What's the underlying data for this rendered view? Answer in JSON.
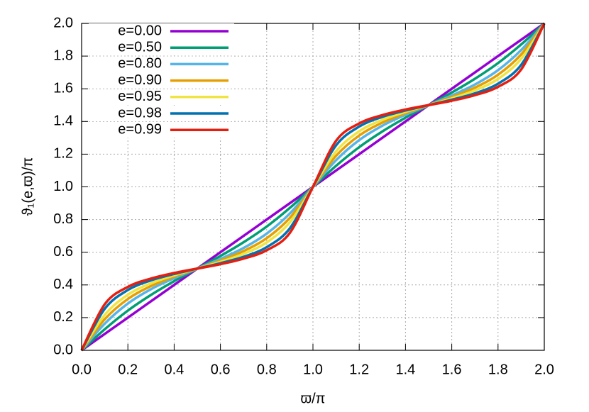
{
  "chart_data": {
    "type": "line",
    "x_label": "ϖ/π",
    "y_label": "ϑ₁(e,ϖ)/π",
    "x": [
      0,
      0.1,
      0.2,
      0.3,
      0.4,
      0.5,
      0.6,
      0.7,
      0.8,
      0.9,
      1.0,
      1.1,
      1.2,
      1.3,
      1.4,
      1.5,
      1.6,
      1.7,
      1.8,
      1.9,
      2.0
    ],
    "series": [
      {
        "name": "e=0.00",
        "color": "#9400d3",
        "values": [
          0,
          0.1,
          0.2,
          0.3,
          0.4,
          0.5,
          0.6,
          0.7,
          0.8,
          0.9,
          1.0,
          1.1,
          1.2,
          1.3,
          1.4,
          1.5,
          1.6,
          1.7,
          1.8,
          1.9,
          2.0
        ]
      },
      {
        "name": "e=0.50",
        "color": "#009e73",
        "values": [
          0,
          0.129,
          0.243,
          0.339,
          0.423,
          0.5,
          0.577,
          0.661,
          0.757,
          0.871,
          1.0,
          1.129,
          1.243,
          1.339,
          1.423,
          1.5,
          1.577,
          1.661,
          1.757,
          1.871,
          2.0
        ]
      },
      {
        "name": "e=0.80",
        "color": "#56b4e9",
        "values": [
          0,
          0.163,
          0.286,
          0.374,
          0.441,
          0.5,
          0.559,
          0.626,
          0.714,
          0.837,
          1.0,
          1.163,
          1.286,
          1.374,
          1.441,
          1.5,
          1.559,
          1.626,
          1.714,
          1.837,
          2.0
        ]
      },
      {
        "name": "e=0.90",
        "color": "#e69f00",
        "values": [
          0,
          0.19,
          0.314,
          0.393,
          0.451,
          0.5,
          0.549,
          0.607,
          0.686,
          0.81,
          1.0,
          1.19,
          1.314,
          1.393,
          1.451,
          1.5,
          1.549,
          1.607,
          1.686,
          1.81,
          2.0
        ]
      },
      {
        "name": "e=0.95",
        "color": "#f0e442",
        "values": [
          0,
          0.217,
          0.34,
          0.41,
          0.459,
          0.5,
          0.541,
          0.59,
          0.66,
          0.783,
          1.0,
          1.217,
          1.34,
          1.41,
          1.459,
          1.5,
          1.541,
          1.59,
          1.66,
          1.783,
          2.0
        ]
      },
      {
        "name": "e=0.98",
        "color": "#0072b2",
        "values": [
          0,
          0.254,
          0.369,
          0.428,
          0.467,
          0.5,
          0.533,
          0.572,
          0.631,
          0.746,
          1.0,
          1.254,
          1.369,
          1.428,
          1.467,
          1.5,
          1.533,
          1.572,
          1.631,
          1.746,
          2.0
        ]
      },
      {
        "name": "e=0.99",
        "color": "#e51e10",
        "values": [
          0,
          0.282,
          0.388,
          0.439,
          0.473,
          0.5,
          0.527,
          0.561,
          0.612,
          0.718,
          1.0,
          1.282,
          1.388,
          1.439,
          1.473,
          1.5,
          1.527,
          1.561,
          1.612,
          1.718,
          2.0
        ]
      }
    ],
    "xlim": [
      0,
      2
    ],
    "ylim": [
      0,
      2
    ],
    "xticks": [
      {
        "value": 0,
        "label": "0.0"
      },
      0.2,
      0.4,
      0.6,
      0.8,
      {
        "value": 1,
        "label": "1.0"
      },
      1.2,
      1.4,
      1.6,
      1.8,
      {
        "value": 2,
        "label": "2.0"
      }
    ],
    "yticks": [
      {
        "value": 0,
        "label": "0.0"
      },
      0.2,
      0.4,
      0.6,
      0.8,
      {
        "value": 1,
        "label": "1.0"
      },
      1.2,
      1.4,
      1.6,
      1.8,
      {
        "value": 2,
        "label": "2.0"
      }
    ],
    "grid": true,
    "legend": "top-left"
  }
}
